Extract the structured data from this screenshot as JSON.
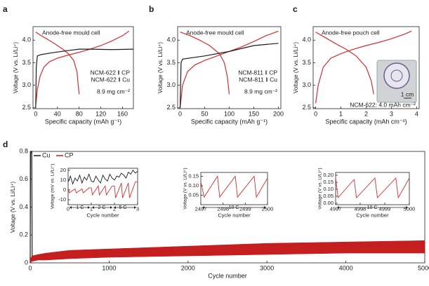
{
  "chart_data": [
    {
      "type": "line",
      "panel": "a",
      "xlabel": "Specific capacity (mAh g⁻¹)",
      "ylabel": "Voltage (V vs. Li/Li⁺)",
      "annotations": [
        "Anode-free mould cell",
        "8.9 mg cm⁻²"
      ],
      "xlim": [
        -5,
        180
      ],
      "xticks": [
        0,
        40,
        80,
        120,
        160
      ],
      "ylim": [
        2.48,
        4.3
      ],
      "yticks": [
        2.5,
        {
          "value": 3,
          "label": "3.0"
        },
        3.5,
        {
          "value": 4,
          "label": "4.0"
        }
      ],
      "series": [
        {
          "name": "NCM-622 ‖ CP",
          "color": "#d62d2d",
          "x": [
            0,
            3,
            8,
            15,
            25,
            40,
            60,
            80,
            100,
            120,
            140,
            160,
            172
          ],
          "values": [
            2.55,
            2.9,
            3.2,
            3.4,
            3.52,
            3.6,
            3.67,
            3.73,
            3.8,
            3.88,
            3.98,
            4.1,
            4.2
          ]
        },
        {
          "color": "#d62d2d",
          "x": [
            0,
            10,
            20,
            30,
            40,
            50,
            60,
            70,
            76,
            80
          ],
          "values": [
            4.18,
            4.1,
            4.03,
            3.96,
            3.88,
            3.8,
            3.7,
            3.55,
            3.3,
            2.8
          ]
        },
        {
          "name": "NCM-622 ‖ Cu",
          "color": "#1a1a1a",
          "x": [
            0,
            1,
            3,
            10,
            30,
            60,
            80,
            100,
            140,
            180
          ],
          "values": [
            2.5,
            3.4,
            3.65,
            3.68,
            3.72,
            3.77,
            3.8,
            3.8,
            3.79,
            3.8
          ]
        }
      ]
    },
    {
      "type": "line",
      "panel": "b",
      "xlabel": "Specific capacity (mAh g⁻¹)",
      "ylabel": "Voltage (V vs. Li/Li⁺)",
      "annotations": [
        "Anode-free mould cell",
        "8.9 mg cm⁻²"
      ],
      "xlim": [
        -5,
        205
      ],
      "xticks": [
        0,
        50,
        100,
        150,
        200
      ],
      "ylim": [
        2.48,
        4.3
      ],
      "yticks": [
        2.5,
        {
          "value": 3,
          "label": "3.0"
        },
        3.5,
        {
          "value": 4,
          "label": "4.0"
        }
      ],
      "series": [
        {
          "name": "NCM-811 ‖ CP",
          "color": "#d62d2d",
          "x": [
            0,
            5,
            15,
            30,
            50,
            75,
            100,
            125,
            150,
            175,
            200
          ],
          "values": [
            2.5,
            3.0,
            3.3,
            3.45,
            3.55,
            3.65,
            3.75,
            3.85,
            3.97,
            4.1,
            4.2
          ]
        },
        {
          "color": "#d62d2d",
          "x": [
            0,
            20,
            40,
            60,
            80,
            90,
            96,
            100
          ],
          "values": [
            4.18,
            4.1,
            4.0,
            3.88,
            3.7,
            3.5,
            3.2,
            2.8
          ]
        },
        {
          "name": "NCM-811 ‖ Cu",
          "color": "#1a1a1a",
          "x": [
            0,
            2,
            5,
            50,
            100,
            150,
            200
          ],
          "values": [
            2.5,
            3.5,
            3.58,
            3.65,
            3.75,
            3.88,
            3.93
          ]
        }
      ]
    },
    {
      "type": "line",
      "panel": "c",
      "xlabel": "Specific capacity (mAh cm⁻²)",
      "ylabel": "Voltage (V vs. Li/Li⁺)",
      "annotations": [
        "Anode-free pouch cell",
        "NCM-622: 4.0 mAh cm⁻²",
        "1 cm"
      ],
      "xlim": [
        -0.1,
        4.1
      ],
      "xticks": [
        0,
        1,
        2,
        3,
        4
      ],
      "ylim": [
        2.48,
        4.3
      ],
      "yticks": [
        2.5,
        {
          "value": 3,
          "label": "3.0"
        },
        3.5,
        {
          "value": 4,
          "label": "4.0"
        }
      ],
      "series": [
        {
          "color": "#d62d2d",
          "x": [
            0,
            0.1,
            0.3,
            0.6,
            1,
            1.5,
            2,
            2.5,
            3,
            3.5,
            3.8
          ],
          "values": [
            2.6,
            3.0,
            3.4,
            3.6,
            3.7,
            3.8,
            3.88,
            3.95,
            4.03,
            4.13,
            4.2
          ]
        },
        {
          "color": "#d62d2d",
          "x": [
            0,
            0.4,
            0.8,
            1.2,
            1.6,
            2.0,
            2.2,
            2.3
          ],
          "values": [
            4.18,
            4.05,
            3.92,
            3.8,
            3.65,
            3.4,
            3.1,
            2.8
          ]
        }
      ]
    },
    {
      "type": "line",
      "panel": "d",
      "xlabel": "Cycle number",
      "ylabel": "Voltage (V vs. Li/Li⁺)",
      "xlim": [
        0,
        5000
      ],
      "xticks": [
        0,
        1000,
        2000,
        3000,
        4000,
        5000
      ],
      "ylim": [
        0,
        0.8
      ],
      "yticks": [
        0,
        0.2,
        0.4,
        0.6,
        0.8
      ],
      "series": [
        {
          "name": "Cu",
          "color": "#1a1a1a",
          "x": [
            0,
            5,
            10,
            20,
            25
          ],
          "values": [
            0,
            0.78,
            0.8,
            0.8,
            0.02
          ]
        },
        {
          "name": "CP",
          "color": "#c41e1e",
          "x": [
            0,
            20,
            100,
            200,
            500,
            1000,
            2000,
            3000,
            4000,
            5000
          ],
          "values": [
            0.02,
            0.05,
            0.06,
            0.07,
            0.09,
            0.1,
            0.12,
            0.14,
            0.15,
            0.16
          ],
          "low": [
            0,
            0.01,
            0.02,
            0.02,
            0.03,
            0.04,
            0.05,
            0.06,
            0.07,
            0.07
          ]
        }
      ]
    },
    {
      "type": "line",
      "xlabel": "Cycle number",
      "ylabel": "Voltage (mV vs. Li/Li⁺)",
      "annotations": [
        "1 C",
        "2 C",
        "5 C"
      ],
      "xlim": [
        0,
        3
      ],
      "xticks": [
        0,
        1,
        2,
        3
      ],
      "ylim": [
        -15,
        22
      ],
      "yticks": [
        -10,
        0,
        10,
        20
      ],
      "series": [
        {
          "color": "#1a1a1a",
          "x": [
            0,
            0.1,
            0.2,
            0.3,
            0.4,
            0.5,
            0.6,
            0.7,
            0.8,
            0.9,
            1.0,
            1.1,
            1.2,
            1.3,
            1.4,
            1.5,
            1.6,
            1.7,
            1.8,
            1.9,
            2.0,
            2.1,
            2.2,
            2.3,
            2.4,
            2.5,
            2.6,
            2.7,
            2.8,
            2.9,
            3.0
          ],
          "values": [
            8,
            14,
            6,
            12,
            9,
            15,
            7,
            13,
            10,
            16,
            9,
            8,
            14,
            10,
            7,
            15,
            11,
            9,
            16,
            12,
            10,
            14,
            13,
            17,
            15,
            12,
            18,
            16,
            20,
            17,
            19
          ]
        },
        {
          "color": "#d62d2d",
          "x": [
            0,
            0.05,
            0.3,
            0.35,
            0.6,
            0.65,
            0.9,
            1.0,
            1.05,
            1.3,
            1.35,
            1.6,
            1.65,
            1.9,
            2.0,
            2.05,
            2.3,
            2.35,
            2.6,
            2.65,
            2.9,
            3.0
          ],
          "values": [
            2,
            -3,
            1,
            -3,
            1,
            -3,
            2,
            2,
            -5,
            4,
            -5,
            4,
            -5,
            4,
            4,
            -8,
            7,
            -8,
            7,
            -8,
            8,
            8
          ]
        }
      ]
    },
    {
      "type": "line",
      "xlabel": "Cycle number",
      "ylabel": "Voltage (V vs. Li/Li⁺)",
      "annotations": [
        "10 C"
      ],
      "xlim": [
        2497,
        2500
      ],
      "xticks": [
        2497,
        2498,
        2499,
        2500
      ],
      "ylim": [
        0,
        0.17
      ],
      "yticks": [
        0.05,
        {
          "value": 0.1,
          "label": "0.10"
        },
        0.15
      ],
      "series": [
        {
          "color": "#d62d2d",
          "x": [
            2497,
            2497.15,
            2497.75,
            2497.85,
            2498.55,
            2498.65,
            2499.4,
            2499.5,
            2500
          ],
          "values": [
            0.12,
            0.04,
            0.15,
            0.04,
            0.15,
            0.04,
            0.15,
            0.04,
            0.14
          ]
        }
      ]
    },
    {
      "type": "line",
      "xlabel": "Cycle number",
      "ylabel": "Voltage (V vs. Li/Li⁺)",
      "annotations": [
        "10 C"
      ],
      "xlim": [
        4997,
        5000
      ],
      "xticks": [
        4997,
        4998,
        4999,
        5000
      ],
      "ylim": [
        -0.01,
        0.22
      ],
      "yticks": [
        {
          "value": 0,
          "label": "0.00"
        },
        0.05,
        {
          "value": 0.1,
          "label": "0.10"
        },
        0.15,
        {
          "value": 0.2,
          "label": "0.20"
        }
      ],
      "series": [
        {
          "color": "#d62d2d",
          "x": [
            4997,
            4997.1,
            4997.75,
            4997.85,
            4998.6,
            4998.7,
            4999.45,
            4999.55,
            5000
          ],
          "values": [
            0.18,
            0.04,
            0.17,
            0.04,
            0.18,
            0.04,
            0.18,
            0.04,
            0.18
          ]
        }
      ]
    }
  ]
}
